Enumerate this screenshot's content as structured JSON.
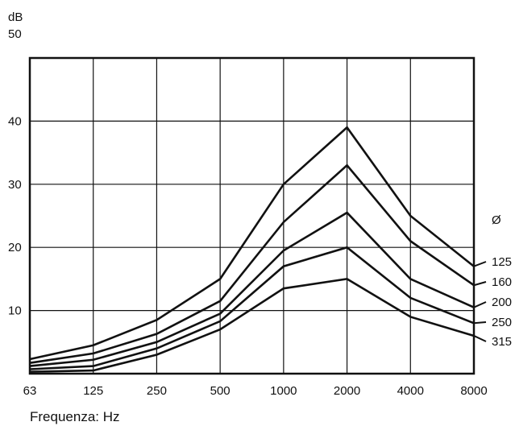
{
  "chart_data": {
    "type": "line",
    "y_unit": "dB",
    "ylim": [
      0,
      50
    ],
    "y_ticks": [
      "10",
      "20",
      "30",
      "40",
      "50"
    ],
    "categories": [
      "63",
      "125",
      "250",
      "500",
      "1000",
      "2000",
      "4000",
      "8000"
    ],
    "xlabel": "Frequenza: Hz",
    "legend_title": "Ø",
    "grid": true,
    "series": [
      {
        "name": "125",
        "values": [
          2.3,
          4.5,
          8.5,
          15,
          30,
          39,
          25,
          17
        ]
      },
      {
        "name": "160",
        "values": [
          1.7,
          3.2,
          6.3,
          11.5,
          24,
          33,
          21,
          14
        ]
      },
      {
        "name": "200",
        "values": [
          1.2,
          2.2,
          5,
          9.5,
          19.5,
          25.5,
          15,
          10.5
        ]
      },
      {
        "name": "250",
        "values": [
          0.7,
          1.2,
          4,
          8.3,
          17,
          20,
          12,
          8
        ]
      },
      {
        "name": "315",
        "values": [
          0.3,
          0.5,
          3,
          7,
          13.5,
          15,
          9,
          6
        ]
      }
    ]
  }
}
